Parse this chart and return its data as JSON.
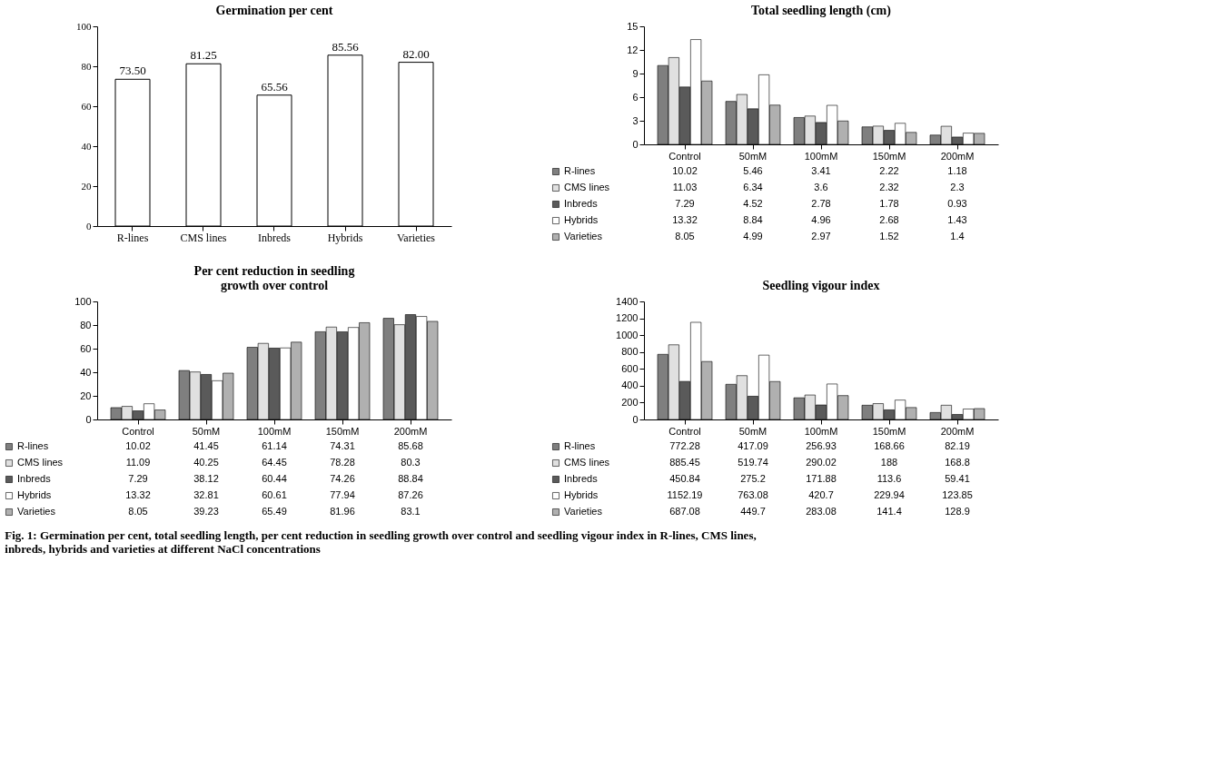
{
  "chart_data": [
    {
      "type": "bar",
      "title": "Germination per cent",
      "categories": [
        "R-lines",
        "CMS lines",
        "Inbreds",
        "Hybrids",
        "Varieties"
      ],
      "values": [
        73.5,
        81.25,
        65.56,
        85.56,
        82.0
      ],
      "value_labels": [
        "73.50",
        "81.25",
        "65.56",
        "85.56",
        "82.00"
      ],
      "color": "#ffffff",
      "ylim": [
        0,
        100
      ],
      "yticks": [
        0,
        20,
        40,
        60,
        80,
        100
      ],
      "annotations": [
        "Fig. 1: Germination per cent, total seedling length, per cent reduction in seedling growth over control and seedling vigour index in R-lines, CMS lines, inbreds, hybrids and varieties at different NaCl concentrations"
      ]
    },
    {
      "type": "bar",
      "title": "Total seedling length (cm)",
      "categories": [
        "Control",
        "50mM",
        "100mM",
        "150mM",
        "200mM"
      ],
      "ylim": [
        0,
        15
      ],
      "yticks": [
        0,
        3,
        6,
        9,
        12,
        15
      ],
      "data_labels": true,
      "legend": "bottom left",
      "series": [
        {
          "name": "R-lines",
          "color": "#7f7f7f",
          "values": [
            10.02,
            5.46,
            3.41,
            2.22,
            1.18
          ]
        },
        {
          "name": "CMS lines",
          "color": "#e0e0e0",
          "values": [
            11.03,
            6.34,
            3.6,
            2.32,
            2.3
          ]
        },
        {
          "name": "Inbreds",
          "color": "#5a5a5a",
          "values": [
            7.29,
            4.52,
            2.78,
            1.78,
            0.93
          ]
        },
        {
          "name": "Hybrids",
          "color": "#ffffff",
          "values": [
            13.32,
            8.84,
            4.96,
            2.68,
            1.43
          ]
        },
        {
          "name": "Varieties",
          "color": "#b0b0b0",
          "values": [
            8.05,
            4.99,
            2.97,
            1.52,
            1.4
          ]
        }
      ]
    },
    {
      "type": "bar",
      "title": "Per cent reduction in seedling growth over control",
      "categories": [
        "Control",
        "50mM",
        "100mM",
        "150mM",
        "200mM"
      ],
      "ylim": [
        0,
        100
      ],
      "yticks": [
        0,
        20,
        40,
        60,
        80,
        100
      ],
      "data_labels": true,
      "legend": "bottom left",
      "series": [
        {
          "name": "R-lines",
          "color": "#7f7f7f",
          "values": [
            10.02,
            41.45,
            61.14,
            74.31,
            85.68
          ]
        },
        {
          "name": "CMS lines",
          "color": "#e0e0e0",
          "values": [
            11.09,
            40.25,
            64.45,
            78.28,
            80.3
          ]
        },
        {
          "name": "Inbreds",
          "color": "#5a5a5a",
          "values": [
            7.29,
            38.12,
            60.44,
            74.26,
            88.84
          ]
        },
        {
          "name": "Hybrids",
          "color": "#ffffff",
          "values": [
            13.32,
            32.81,
            60.61,
            77.94,
            87.26
          ]
        },
        {
          "name": "Varieties",
          "color": "#b0b0b0",
          "values": [
            8.05,
            39.23,
            65.49,
            81.96,
            83.1
          ]
        }
      ]
    },
    {
      "type": "bar",
      "title": "Seedling vigour index",
      "categories": [
        "Control",
        "50mM",
        "100mM",
        "150mM",
        "200mM"
      ],
      "ylim": [
        0,
        1400
      ],
      "yticks": [
        0,
        200,
        400,
        600,
        800,
        1000,
        1200,
        1400
      ],
      "data_labels": true,
      "legend": "bottom left",
      "series": [
        {
          "name": "R-lines",
          "color": "#7f7f7f",
          "values": [
            772.28,
            417.09,
            256.93,
            168.66,
            82.19
          ]
        },
        {
          "name": "CMS lines",
          "color": "#e0e0e0",
          "values": [
            885.45,
            519.74,
            290.02,
            188,
            168.8
          ]
        },
        {
          "name": "Inbreds",
          "color": "#5a5a5a",
          "values": [
            450.84,
            275.2,
            171.88,
            113.6,
            59.41
          ]
        },
        {
          "name": "Hybrids",
          "color": "#ffffff",
          "values": [
            1152.19,
            763.08,
            420.7,
            229.94,
            123.85
          ]
        },
        {
          "name": "Varieties",
          "color": "#b0b0b0",
          "values": [
            687.08,
            449.7,
            283.08,
            141.4,
            128.9
          ]
        }
      ]
    }
  ]
}
